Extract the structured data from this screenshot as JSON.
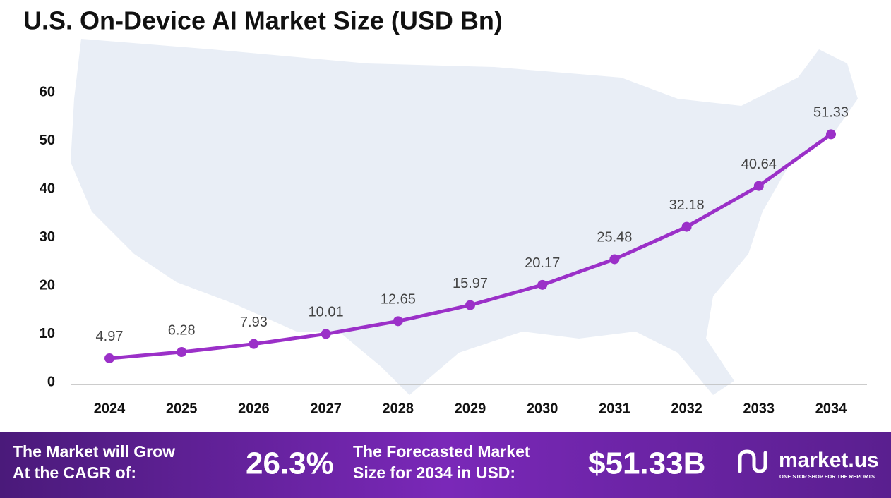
{
  "chart_data": {
    "type": "line",
    "title": "U.S. On-Device AI Market Size (USD Bn)",
    "categories": [
      "2024",
      "2025",
      "2026",
      "2027",
      "2028",
      "2029",
      "2030",
      "2031",
      "2032",
      "2033",
      "2034"
    ],
    "values": [
      4.97,
      6.28,
      7.93,
      10.01,
      12.65,
      15.97,
      20.17,
      25.48,
      32.18,
      40.64,
      51.33
    ],
    "color": "#9b30c8",
    "ylim": [
      0,
      60
    ],
    "yticks": [
      0,
      10,
      20,
      30,
      40,
      50,
      60
    ],
    "grid": false
  },
  "footer": {
    "cagr_label": [
      "The Market will Grow",
      "At the CAGR of:"
    ],
    "cagr_value": "26.3%",
    "forecast_label": [
      "The Forecasted Market",
      "Size for 2034 in USD:"
    ],
    "forecast_value": "$51.33B",
    "logo": "market.us",
    "logo_tagline": "ONE STOP SHOP FOR THE REPORTS"
  }
}
